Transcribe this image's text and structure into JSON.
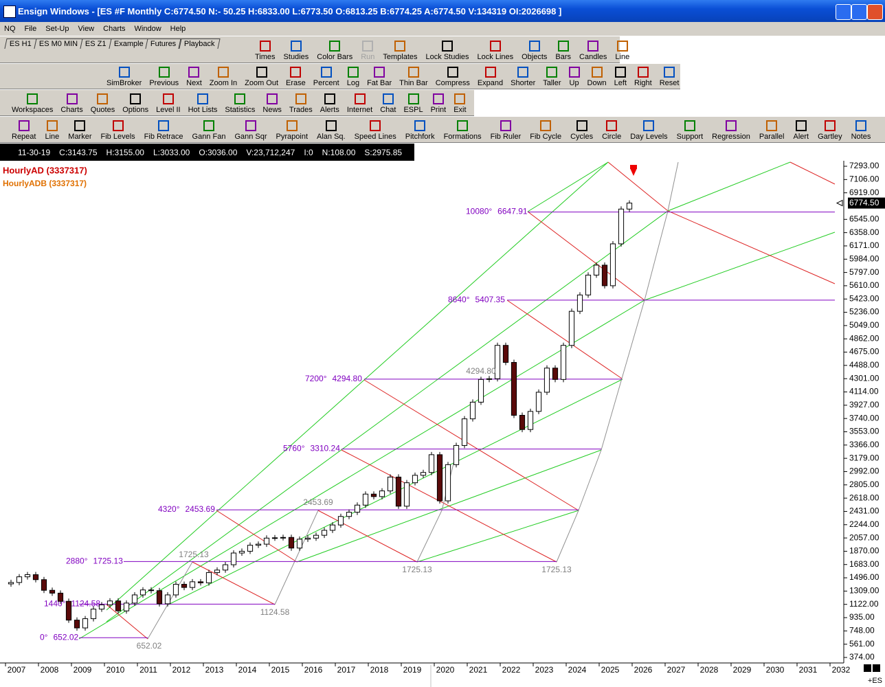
{
  "window": {
    "title": "Ensign Windows - [ES #F Monthly C:6774.50 N:- 50.25 H:6833.00 L:6773.50 O:6813.25 B:6774.25 A:6774.50 V:134319 OI:2026698 ]"
  },
  "menu": [
    "NQ",
    "File",
    "Set-Up",
    "View",
    "Charts",
    "Window",
    "Help"
  ],
  "tabs": [
    "ES H1",
    "ES M0 MIN",
    "ES Z1",
    "Example",
    "Futures",
    "Playback"
  ],
  "toolbars": [
    [
      "Times",
      "Studies",
      "Color Bars",
      "Run",
      "Templates",
      "Lock Studies",
      "Lock Lines",
      "Objects",
      "Bars",
      "Candles",
      "Line"
    ],
    [
      "SimBroker",
      "Previous",
      "Next",
      "Zoom In",
      "Zoom Out",
      "Erase",
      "Percent",
      "Log",
      "Fat Bar",
      "Thin Bar",
      "Compress",
      "Expand",
      "Shorter",
      "Taller",
      "Up",
      "Down",
      "Left",
      "Right",
      "Reset"
    ],
    [
      "Workspaces",
      "Charts",
      "Quotes",
      "Options",
      "Level II",
      "Hot Lists",
      "Statistics",
      "News",
      "Trades",
      "Alerts",
      "Internet",
      "Chat",
      "ESPL",
      "Print",
      "Exit"
    ],
    [
      "Repeat",
      "Line",
      "Marker",
      "Fib Levels",
      "Fib Retrace",
      "Gann Fan",
      "Gann Sqr",
      "Pyrapoint",
      "Alan Sq.",
      "Speed Lines",
      "Pitchfork",
      "Formations",
      "Fib Ruler",
      "Fib Cycle",
      "Cycles",
      "Circle",
      "Day Levels",
      "Support",
      "Regression",
      "Parallel",
      "Alert",
      "Gartley",
      "Notes"
    ]
  ],
  "disabled": "Run",
  "quote_bar": [
    "11-30-19",
    "C:3143.75",
    "H:3155.00",
    "L:3033.00",
    "O:3036.00",
    "V:23,712,247",
    "I:0",
    "N:108.00",
    "S:2975.85"
  ],
  "studies": [
    "HourlyAD (3337317)",
    "HourlyADB (3337317)"
  ],
  "last_price_label": {
    "value": 6774.5,
    "label": "6774.50"
  },
  "symbol_tag": "+ES",
  "chart_data": {
    "type": "candlestick",
    "symbol": "ES #F Monthly",
    "first_open": 1410,
    "closes": [
      1430,
      1510,
      1540,
      1470,
      1320,
      1280,
      1165,
      900,
      790,
      920,
      1055,
      1115,
      1170,
      1030,
      1140,
      1255,
      1325,
      1315,
      1130,
      1255,
      1405,
      1360,
      1440,
      1425,
      1570,
      1605,
      1680,
      1845,
      1870,
      1955,
      1970,
      2055,
      2060,
      2065,
      1915,
      2040,
      2055,
      2095,
      2165,
      2240,
      2360,
      2420,
      2520,
      2675,
      2640,
      2720,
      2915,
      2505,
      2835,
      2940,
      2980,
      3230,
      2580,
      3090,
      3360,
      3735,
      3970,
      4290,
      4300,
      4770,
      4530,
      3785,
      3585,
      3840,
      4110,
      4450,
      4290,
      4770,
      5250,
      5480,
      5760,
      5900,
      5610,
      6200,
      6690,
      6774.5
    ],
    "xlim": [
      2007,
      2032
    ],
    "ylim": [
      374,
      7293
    ],
    "xticks": [
      2007,
      2008,
      2009,
      2010,
      2011,
      2012,
      2013,
      2014,
      2015,
      2016,
      2017,
      2018,
      2019,
      2020,
      2021,
      2022,
      2023,
      2024,
      2025,
      2026,
      2027,
      2028,
      2029,
      2030,
      2031,
      2032
    ],
    "yticks": [
      {
        "value": 7293,
        "label": "7293.00"
      },
      {
        "value": 7106,
        "label": "7106.00"
      },
      {
        "value": 6919,
        "label": "6919.00"
      },
      {
        "value": 6545,
        "label": "6545.00"
      },
      {
        "value": 6358,
        "label": "6358.00"
      },
      {
        "value": 6171,
        "label": "6171.00"
      },
      {
        "value": 5984,
        "label": "5984.00"
      },
      {
        "value": 5797,
        "label": "5797.00"
      },
      {
        "value": 5610,
        "label": "5610.00"
      },
      {
        "value": 5423,
        "label": "5423.00"
      },
      {
        "value": 5236,
        "label": "5236.00"
      },
      {
        "value": 5049,
        "label": "5049.00"
      },
      {
        "value": 4862,
        "label": "4862.00"
      },
      {
        "value": 4675,
        "label": "4675.00"
      },
      {
        "value": 4488,
        "label": "4488.00"
      },
      {
        "value": 4301,
        "label": "4301.00"
      },
      {
        "value": 4114,
        "label": "4114.00"
      },
      {
        "value": 3927,
        "label": "3927.00"
      },
      {
        "value": 3740,
        "label": "3740.00"
      },
      {
        "value": 3553,
        "label": "3553.00"
      },
      {
        "value": 3366,
        "label": "3366.00"
      },
      {
        "value": 3179,
        "label": "3179.00"
      },
      {
        "value": 2992,
        "label": "2992.00"
      },
      {
        "value": 2805,
        "label": "2805.00"
      },
      {
        "value": 2618,
        "label": "2618.00"
      },
      {
        "value": 2431,
        "label": "2431.00"
      },
      {
        "value": 2244,
        "label": "2244.00"
      },
      {
        "value": 2057,
        "label": "2057.00"
      },
      {
        "value": 1870,
        "label": "1870.00"
      },
      {
        "value": 1683,
        "label": "1683.00"
      },
      {
        "value": 1496,
        "label": "1496.00"
      },
      {
        "value": 1309,
        "label": "1309.00"
      },
      {
        "value": 1122,
        "label": "1122.00"
      },
      {
        "value": 935,
        "label": "935.00"
      },
      {
        "value": 748,
        "label": "748.00"
      },
      {
        "value": 561,
        "label": "561.00"
      },
      {
        "value": 374,
        "label": "374.00"
      }
    ],
    "levels": [
      {
        "degree": "0°",
        "price": {
          "value": 652.02,
          "label": "652.02"
        }
      },
      {
        "degree": "1440°",
        "price": {
          "value": 1124.58,
          "label": "1124.58"
        }
      },
      {
        "degree": "2880°",
        "price": {
          "value": 1725.13,
          "label": "1725.13"
        }
      },
      {
        "degree": "4320°",
        "price": {
          "value": 2453.69,
          "label": "2453.69"
        }
      },
      {
        "degree": "5760°",
        "price": {
          "value": 3310.24,
          "label": "3310.24"
        }
      },
      {
        "degree": "7200°",
        "price": {
          "value": 4294.8,
          "label": "4294.80"
        }
      },
      {
        "degree": "8640°",
        "price": {
          "value": 5407.35,
          "label": "5407.35"
        }
      },
      {
        "degree": "10080°",
        "price": {
          "value": 6647.91,
          "label": "6647.91"
        }
      }
    ],
    "projection_labels": [
      "652.02",
      "1124.58",
      "1725.13",
      "2453.69",
      "1725.13",
      "1725.13",
      "4294.80"
    ]
  }
}
